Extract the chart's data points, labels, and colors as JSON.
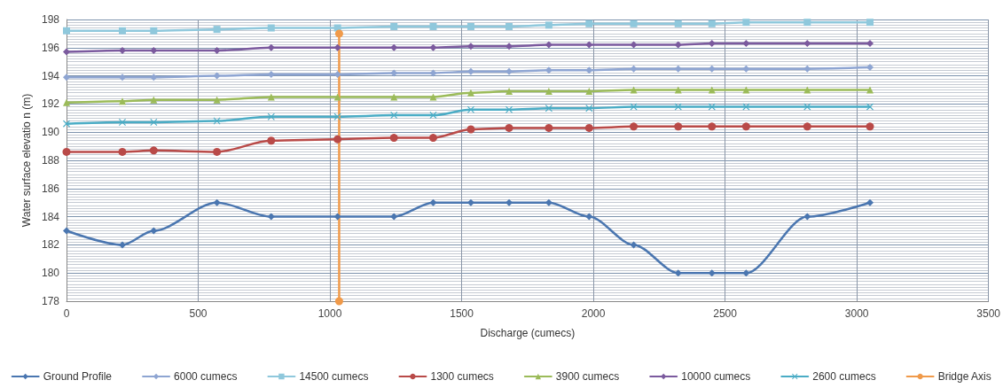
{
  "chart_data": {
    "type": "line",
    "xlabel": "Discharge (cumecs)",
    "ylabel": "Water surface elevatio n (m)",
    "x": [
      0,
      212,
      331,
      571,
      777,
      1029,
      1243,
      1392,
      1535,
      1680,
      1831,
      1984,
      2153,
      2322,
      2450,
      2580,
      2812,
      3050
    ],
    "series": [
      {
        "name": "Ground Profile",
        "color": "#4a76b0",
        "marker": "diamond",
        "values": [
          183,
          182,
          183,
          185,
          184,
          184,
          184,
          185,
          185,
          185,
          185,
          184,
          182,
          180,
          180,
          180,
          184,
          185
        ]
      },
      {
        "name": "6000 cumecs",
        "color": "#8ea5d2",
        "marker": "diamond",
        "values": [
          193.9,
          193.9,
          193.9,
          194.0,
          194.1,
          194.1,
          194.2,
          194.2,
          194.3,
          194.3,
          194.4,
          194.4,
          194.5,
          194.5,
          194.5,
          194.5,
          194.5,
          194.6
        ]
      },
      {
        "name": "14500 cumecs",
        "color": "#8fc8dc",
        "marker": "square",
        "values": [
          197.2,
          197.2,
          197.2,
          197.3,
          197.4,
          197.4,
          197.5,
          197.5,
          197.5,
          197.5,
          197.6,
          197.7,
          197.7,
          197.7,
          197.7,
          197.8,
          197.8,
          197.8
        ]
      },
      {
        "name": "1300 cumecs",
        "color": "#b94a48",
        "marker": "circle",
        "values": [
          188.6,
          188.6,
          188.7,
          188.6,
          189.4,
          189.5,
          189.6,
          189.6,
          190.2,
          190.3,
          190.3,
          190.3,
          190.4,
          190.4,
          190.4,
          190.4,
          190.4,
          190.4
        ]
      },
      {
        "name": "3900 cumecs",
        "color": "#9bbb59",
        "marker": "triangle",
        "values": [
          192.1,
          192.2,
          192.3,
          192.3,
          192.5,
          192.5,
          192.5,
          192.5,
          192.8,
          192.9,
          192.9,
          192.9,
          193.0,
          193.0,
          193.0,
          193.0,
          193.0,
          193.0
        ]
      },
      {
        "name": "10000 cumecs",
        "color": "#7b5a9e",
        "marker": "diamond",
        "values": [
          195.7,
          195.8,
          195.8,
          195.8,
          196.0,
          196.0,
          196.0,
          196.0,
          196.1,
          196.1,
          196.2,
          196.2,
          196.2,
          196.2,
          196.3,
          196.3,
          196.3,
          196.3
        ]
      },
      {
        "name": "2600 cumecs",
        "color": "#4aacc5",
        "marker": "cross",
        "values": [
          190.6,
          190.7,
          190.7,
          190.8,
          191.1,
          191.1,
          191.2,
          191.2,
          191.6,
          191.6,
          191.7,
          191.7,
          191.8,
          191.8,
          191.8,
          191.8,
          191.8,
          191.8
        ]
      },
      {
        "name": "Bridge Axis",
        "color": "#f09a4a",
        "marker": "circle",
        "x": [
          1035,
          1035
        ],
        "values": [
          178,
          197
        ]
      }
    ],
    "xlim": [
      0,
      3500
    ],
    "xticks": [
      0,
      500,
      1000,
      1500,
      2000,
      2500,
      3000,
      3500
    ],
    "ylim": [
      178,
      198
    ],
    "yticks": [
      178,
      180,
      182,
      184,
      186,
      188,
      190,
      192,
      194,
      196,
      198
    ],
    "grid": true,
    "legend": "bottom",
    "line_style": "solid"
  }
}
